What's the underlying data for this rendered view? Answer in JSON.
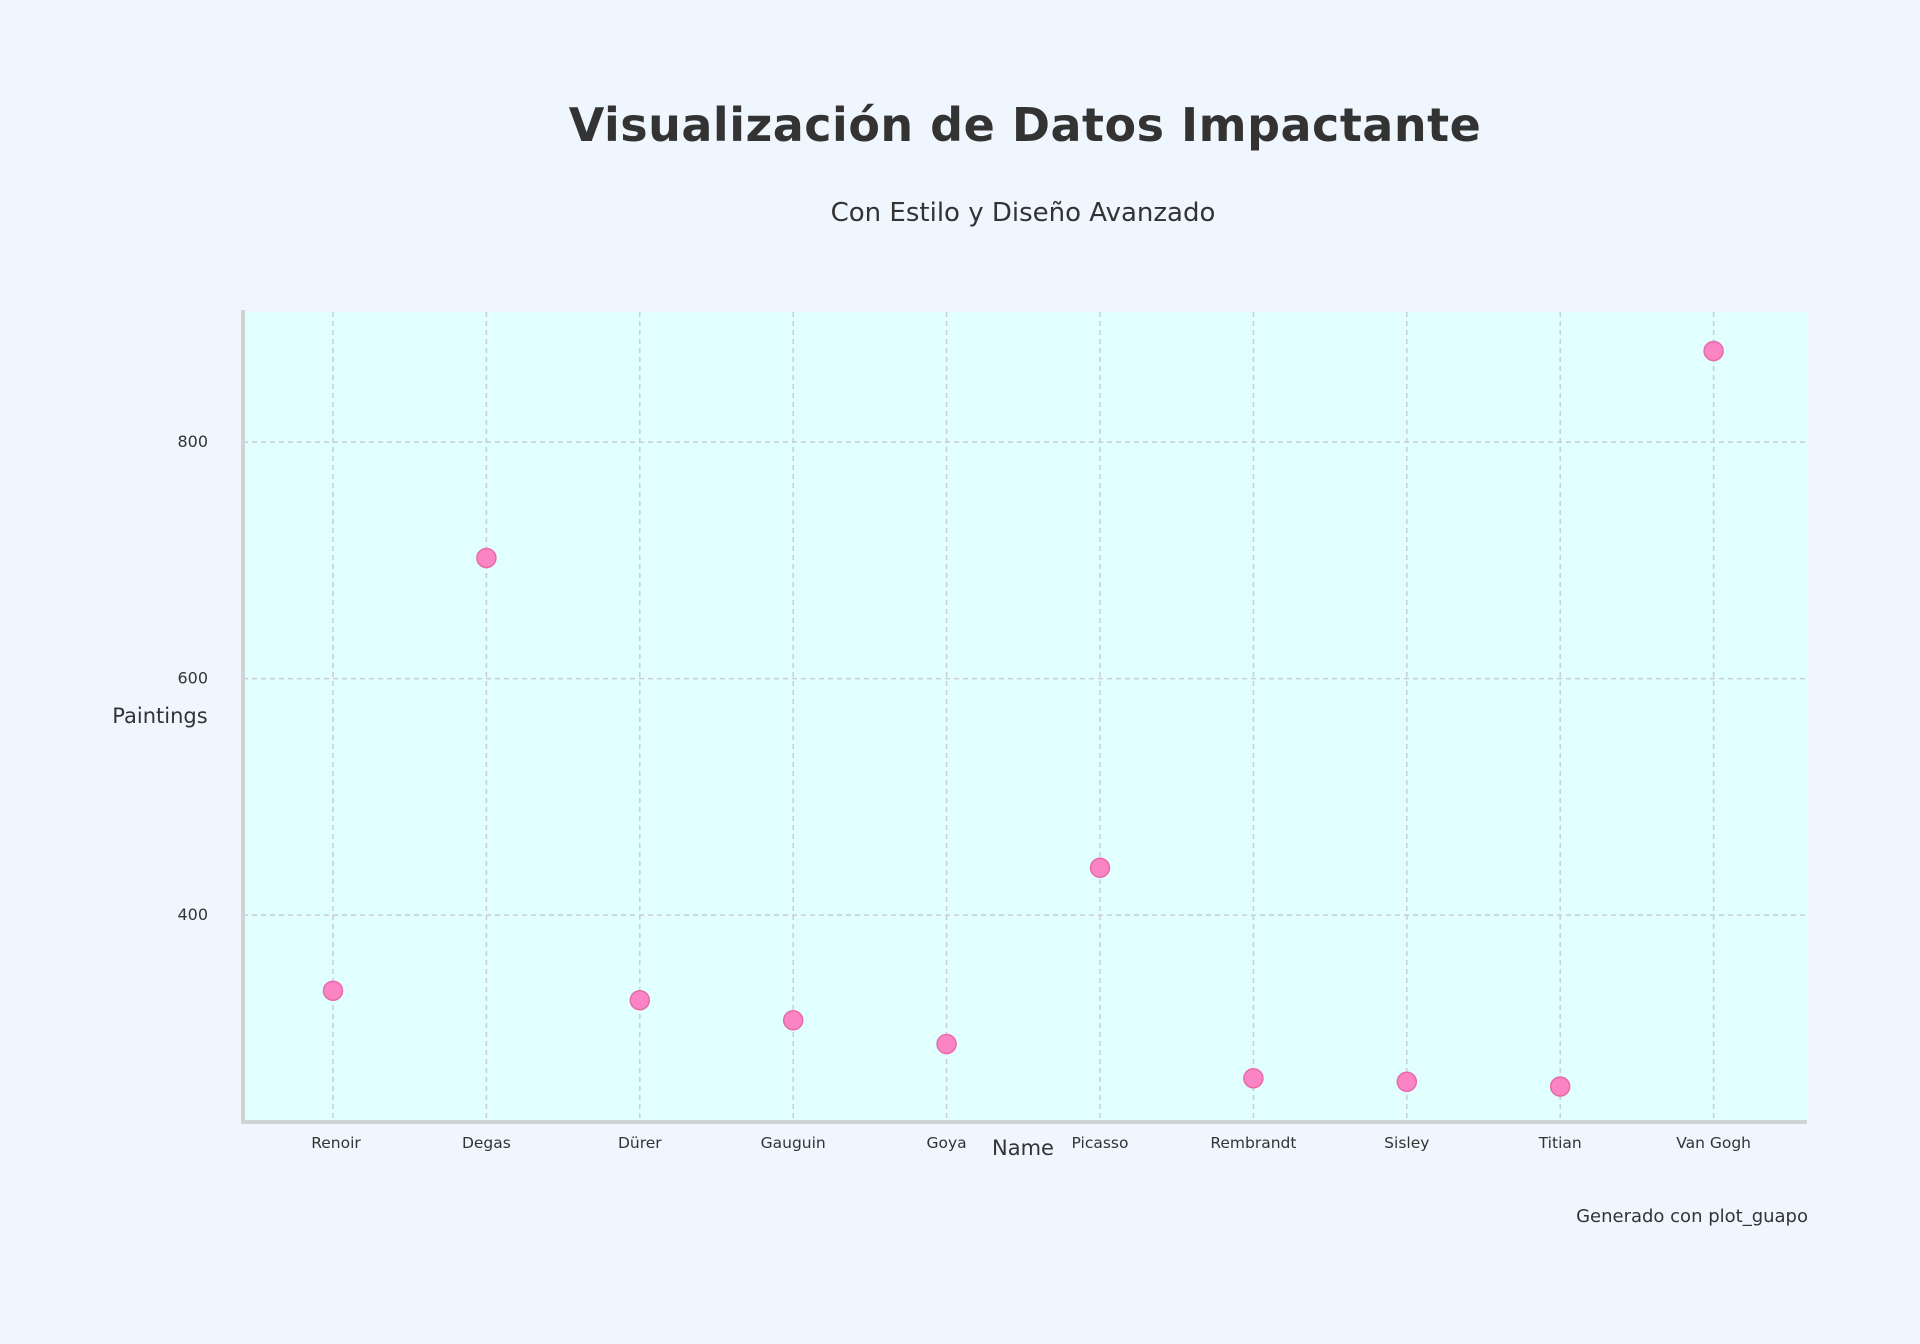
{
  "chart_data": {
    "type": "scatter",
    "title": "Visualización de Datos Impactante",
    "subtitle": "Con Estilo y Diseño Avanzado",
    "xlabel": "Name",
    "ylabel": "Paintings",
    "categories": [
      "Renoir",
      "Degas",
      "Dürer",
      "Gauguin",
      "Goya",
      "Picasso",
      "Rembrandt",
      "Sisley",
      "Titian",
      "Van Gogh"
    ],
    "values": [
      336,
      702,
      328,
      311,
      291,
      440,
      262,
      259,
      255,
      877
    ],
    "ylim": [
      225,
      910
    ],
    "yticks": [
      400,
      600,
      800
    ],
    "ytick_labels": [
      "400",
      "600",
      "800"
    ],
    "grid": true,
    "legend": "none",
    "colors": {
      "page_background": "#eff6fe",
      "plot_background": "#e0fffe",
      "marker_fill": "#fb85c4",
      "marker_stroke": "#e86aa9",
      "grid": "#c9cdd0",
      "axis": "#d0d3d4",
      "text": "#333333"
    }
  },
  "footer": {
    "text": "Generado con plot_guapo"
  }
}
